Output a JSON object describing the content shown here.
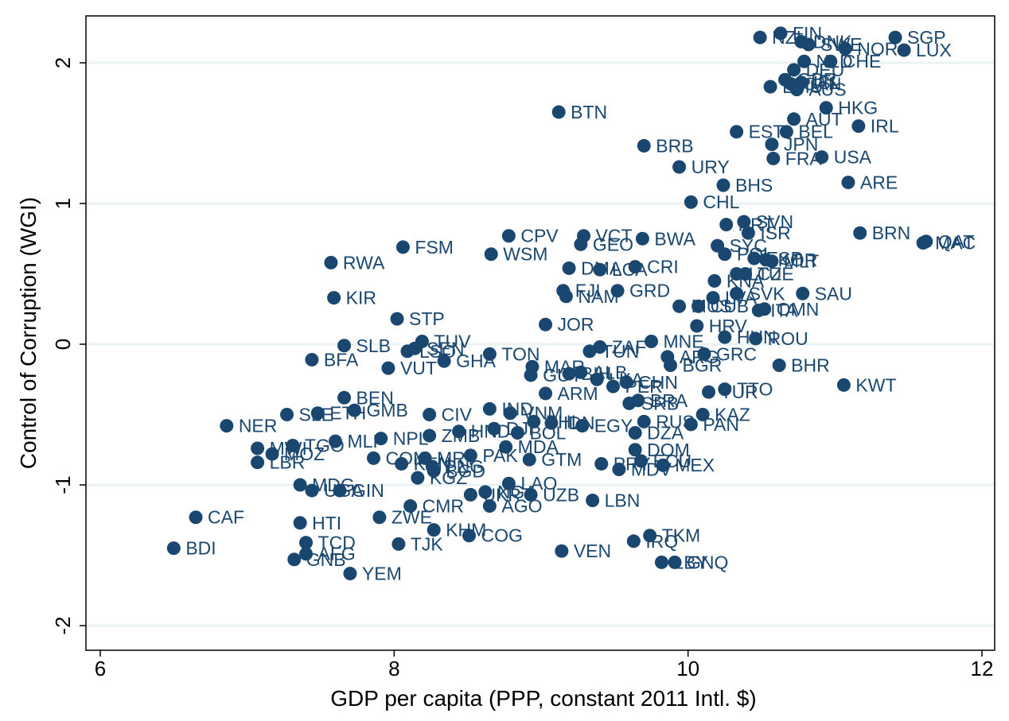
{
  "chart_data": {
    "type": "scatter",
    "xlabel": "GDP per capita (PPP, constant 2011 Intl. $)",
    "ylabel": "Control of Corruption (WGI)",
    "xlim": [
      6,
      12
    ],
    "ylim": [
      -2.3,
      2.3
    ],
    "xticks": [
      6,
      8,
      10,
      12
    ],
    "yticks": [
      -2,
      -1,
      0,
      1,
      2
    ],
    "grid": "horizontal",
    "marker_color": "#1a476f",
    "points": [
      {
        "label": "FIN",
        "x": 10.63,
        "y": 2.21
      },
      {
        "label": "NZL",
        "x": 10.49,
        "y": 2.18
      },
      {
        "label": "DNK",
        "x": 10.77,
        "y": 2.15
      },
      {
        "label": "SWE",
        "x": 10.82,
        "y": 2.13
      },
      {
        "label": "NOR",
        "x": 11.07,
        "y": 2.1
      },
      {
        "label": "CHE",
        "x": 10.97,
        "y": 2.01
      },
      {
        "label": "SGP",
        "x": 11.41,
        "y": 2.18
      },
      {
        "label": "LUX",
        "x": 11.47,
        "y": 2.09
      },
      {
        "label": "NLD",
        "x": 10.79,
        "y": 2.01
      },
      {
        "label": "DEU",
        "x": 10.72,
        "y": 1.95
      },
      {
        "label": "CAN",
        "x": 10.7,
        "y": 1.85
      },
      {
        "label": "GBR",
        "x": 10.66,
        "y": 1.88
      },
      {
        "label": "ISL",
        "x": 10.77,
        "y": 1.86
      },
      {
        "label": "AUS",
        "x": 10.74,
        "y": 1.81
      },
      {
        "label": "BMU",
        "x": 10.56,
        "y": 1.83
      },
      {
        "label": "HKG",
        "x": 10.94,
        "y": 1.68
      },
      {
        "label": "AUT",
        "x": 10.72,
        "y": 1.6
      },
      {
        "label": "IRL",
        "x": 11.16,
        "y": 1.55
      },
      {
        "label": "EST",
        "x": 10.33,
        "y": 1.51
      },
      {
        "label": "BEL",
        "x": 10.67,
        "y": 1.51
      },
      {
        "label": "JPN",
        "x": 10.57,
        "y": 1.42
      },
      {
        "label": "FRA",
        "x": 10.58,
        "y": 1.32
      },
      {
        "label": "USA",
        "x": 10.91,
        "y": 1.33
      },
      {
        "label": "ARE",
        "x": 11.09,
        "y": 1.15
      },
      {
        "label": "BTN",
        "x": 9.12,
        "y": 1.65
      },
      {
        "label": "BRB",
        "x": 9.7,
        "y": 1.41
      },
      {
        "label": "URY",
        "x": 9.94,
        "y": 1.26
      },
      {
        "label": "BHS",
        "x": 10.24,
        "y": 1.13
      },
      {
        "label": "CHL",
        "x": 10.02,
        "y": 1.01
      },
      {
        "label": "SVN",
        "x": 10.38,
        "y": 0.87
      },
      {
        "label": "PRT",
        "x": 10.26,
        "y": 0.85
      },
      {
        "label": "ISR",
        "x": 10.41,
        "y": 0.79
      },
      {
        "label": "BRN",
        "x": 11.17,
        "y": 0.79
      },
      {
        "label": "QAT",
        "x": 11.62,
        "y": 0.73
      },
      {
        "label": "MAC",
        "x": 11.6,
        "y": 0.72
      },
      {
        "label": "CPV",
        "x": 8.78,
        "y": 0.77
      },
      {
        "label": "VCT",
        "x": 9.29,
        "y": 0.77
      },
      {
        "label": "GEO",
        "x": 9.27,
        "y": 0.71
      },
      {
        "label": "BWA",
        "x": 9.69,
        "y": 0.75
      },
      {
        "label": "FSM",
        "x": 8.06,
        "y": 0.69
      },
      {
        "label": "WSM",
        "x": 8.66,
        "y": 0.64
      },
      {
        "label": "RWA",
        "x": 7.57,
        "y": 0.58
      },
      {
        "label": "DMA",
        "x": 9.19,
        "y": 0.54
      },
      {
        "label": "LCA",
        "x": 9.4,
        "y": 0.53
      },
      {
        "label": "CRI",
        "x": 9.64,
        "y": 0.55
      },
      {
        "label": "SYC",
        "x": 10.2,
        "y": 0.7
      },
      {
        "label": "POL",
        "x": 10.25,
        "y": 0.64
      },
      {
        "label": "ESP",
        "x": 10.45,
        "y": 0.61
      },
      {
        "label": "KOR",
        "x": 10.53,
        "y": 0.6
      },
      {
        "label": "MLT",
        "x": 10.57,
        "y": 0.59
      },
      {
        "label": "LTU",
        "x": 10.33,
        "y": 0.5
      },
      {
        "label": "CZE",
        "x": 10.39,
        "y": 0.5
      },
      {
        "label": "KNA",
        "x": 10.18,
        "y": 0.45
      },
      {
        "label": "FJI",
        "x": 9.15,
        "y": 0.38
      },
      {
        "label": "NAM",
        "x": 9.17,
        "y": 0.34
      },
      {
        "label": "GRD",
        "x": 9.52,
        "y": 0.38
      },
      {
        "label": "KIR",
        "x": 7.59,
        "y": 0.33
      },
      {
        "label": "SAU",
        "x": 10.78,
        "y": 0.36
      },
      {
        "label": "LVA",
        "x": 10.17,
        "y": 0.33
      },
      {
        "label": "SVK",
        "x": 10.33,
        "y": 0.36
      },
      {
        "label": "OMN",
        "x": 10.52,
        "y": 0.25
      },
      {
        "label": "ITA",
        "x": 10.48,
        "y": 0.24
      },
      {
        "label": "MUS",
        "x": 9.94,
        "y": 0.27
      },
      {
        "label": "CUB",
        "x": 10.07,
        "y": 0.27
      },
      {
        "label": "HRV",
        "x": 10.06,
        "y": 0.13
      },
      {
        "label": "STP",
        "x": 8.02,
        "y": 0.18
      },
      {
        "label": "JOR",
        "x": 9.03,
        "y": 0.14
      },
      {
        "label": "HUN",
        "x": 10.25,
        "y": 0.05
      },
      {
        "label": "ROU",
        "x": 10.46,
        "y": 0.04
      },
      {
        "label": "SLB",
        "x": 7.66,
        "y": -0.01
      },
      {
        "label": "TUV",
        "x": 8.19,
        "y": 0.02
      },
      {
        "label": "SEN",
        "x": 8.14,
        "y": -0.03
      },
      {
        "label": "LSO",
        "x": 8.09,
        "y": -0.05
      },
      {
        "label": "GHA",
        "x": 8.34,
        "y": -0.12
      },
      {
        "label": "TON",
        "x": 8.65,
        "y": -0.07
      },
      {
        "label": "ZAF",
        "x": 9.4,
        "y": -0.02
      },
      {
        "label": "TUN",
        "x": 9.33,
        "y": -0.05
      },
      {
        "label": "MNE",
        "x": 9.75,
        "y": 0.02
      },
      {
        "label": "ARG",
        "x": 9.86,
        "y": -0.09
      },
      {
        "label": "GRC",
        "x": 10.11,
        "y": -0.07
      },
      {
        "label": "BGR",
        "x": 9.88,
        "y": -0.15
      },
      {
        "label": "BFA",
        "x": 7.44,
        "y": -0.11
      },
      {
        "label": "VUT",
        "x": 7.96,
        "y": -0.17
      },
      {
        "label": "MAR",
        "x": 8.94,
        "y": -0.16
      },
      {
        "label": "GUY",
        "x": 8.93,
        "y": -0.22
      },
      {
        "label": "BIH",
        "x": 9.19,
        "y": -0.21
      },
      {
        "label": "LKA",
        "x": 9.38,
        "y": -0.25
      },
      {
        "label": "ALB",
        "x": 9.27,
        "y": -0.2
      },
      {
        "label": "BHR",
        "x": 10.62,
        "y": -0.15
      },
      {
        "label": "CHN",
        "x": 9.58,
        "y": -0.27
      },
      {
        "label": "PER",
        "x": 9.49,
        "y": -0.3
      },
      {
        "label": "TTO",
        "x": 10.25,
        "y": -0.32
      },
      {
        "label": "TUR",
        "x": 10.14,
        "y": -0.34
      },
      {
        "label": "KWT",
        "x": 11.06,
        "y": -0.29
      },
      {
        "label": "ARM",
        "x": 9.03,
        "y": -0.35
      },
      {
        "label": "BRA",
        "x": 9.66,
        "y": -0.4
      },
      {
        "label": "SRB",
        "x": 9.6,
        "y": -0.42
      },
      {
        "label": "IND",
        "x": 8.65,
        "y": -0.46
      },
      {
        "label": "BEN",
        "x": 7.66,
        "y": -0.38
      },
      {
        "label": "SLE",
        "x": 7.27,
        "y": -0.5
      },
      {
        "label": "ETH",
        "x": 7.48,
        "y": -0.49
      },
      {
        "label": "GMB",
        "x": 7.73,
        "y": -0.47
      },
      {
        "label": "CIV",
        "x": 8.24,
        "y": -0.5
      },
      {
        "label": "VNM",
        "x": 8.79,
        "y": -0.49
      },
      {
        "label": "KAZ",
        "x": 10.1,
        "y": -0.5
      },
      {
        "label": "PAN",
        "x": 10.02,
        "y": -0.57
      },
      {
        "label": "RUS",
        "x": 9.7,
        "y": -0.55
      },
      {
        "label": "PHL",
        "x": 8.95,
        "y": -0.55
      },
      {
        "label": "IDN",
        "x": 9.07,
        "y": -0.56
      },
      {
        "label": "EGY",
        "x": 9.28,
        "y": -0.58
      },
      {
        "label": "DZA",
        "x": 9.64,
        "y": -0.63
      },
      {
        "label": "HND",
        "x": 8.44,
        "y": -0.62
      },
      {
        "label": "DJI",
        "x": 8.68,
        "y": -0.6
      },
      {
        "label": "BOL",
        "x": 8.84,
        "y": -0.63
      },
      {
        "label": "NER",
        "x": 6.86,
        "y": -0.58
      },
      {
        "label": "MWI",
        "x": 7.07,
        "y": -0.74
      },
      {
        "label": "TGO",
        "x": 7.31,
        "y": -0.72
      },
      {
        "label": "MLI",
        "x": 7.6,
        "y": -0.69
      },
      {
        "label": "MOZ",
        "x": 7.17,
        "y": -0.78
      },
      {
        "label": "LBR",
        "x": 7.07,
        "y": -0.84
      },
      {
        "label": "NPL",
        "x": 7.91,
        "y": -0.67
      },
      {
        "label": "ZMB",
        "x": 8.24,
        "y": -0.65
      },
      {
        "label": "COM",
        "x": 7.86,
        "y": -0.81
      },
      {
        "label": "MRT",
        "x": 8.21,
        "y": -0.81
      },
      {
        "label": "PAK",
        "x": 8.52,
        "y": -0.79
      },
      {
        "label": "MDA",
        "x": 8.76,
        "y": -0.73
      },
      {
        "label": "GTM",
        "x": 8.92,
        "y": -0.82
      },
      {
        "label": "KEN",
        "x": 8.05,
        "y": -0.85
      },
      {
        "label": "BGD",
        "x": 8.27,
        "y": -0.9
      },
      {
        "label": "PNG",
        "x": 8.26,
        "y": -0.87
      },
      {
        "label": "DOM",
        "x": 9.64,
        "y": -0.75
      },
      {
        "label": "ECU",
        "x": 9.68,
        "y": -0.83
      },
      {
        "label": "MEX",
        "x": 9.83,
        "y": -0.86
      },
      {
        "label": "PRY",
        "x": 9.41,
        "y": -0.85
      },
      {
        "label": "MDV",
        "x": 9.53,
        "y": -0.89
      },
      {
        "label": "KGZ",
        "x": 8.16,
        "y": -0.95
      },
      {
        "label": "MDG",
        "x": 7.36,
        "y": -1.0
      },
      {
        "label": "UGA",
        "x": 7.44,
        "y": -1.04
      },
      {
        "label": "GIN",
        "x": 7.63,
        "y": -1.04
      },
      {
        "label": "LAO",
        "x": 8.78,
        "y": -0.99
      },
      {
        "label": "NGA",
        "x": 8.62,
        "y": -1.05
      },
      {
        "label": "UKR",
        "x": 8.52,
        "y": -1.07
      },
      {
        "label": "UZB",
        "x": 8.93,
        "y": -1.07
      },
      {
        "label": "LBN",
        "x": 9.35,
        "y": -1.11
      },
      {
        "label": "CMR",
        "x": 8.11,
        "y": -1.15
      },
      {
        "label": "AGO",
        "x": 8.65,
        "y": -1.15
      },
      {
        "label": "CAF",
        "x": 6.65,
        "y": -1.23
      },
      {
        "label": "HTI",
        "x": 7.36,
        "y": -1.27
      },
      {
        "label": "ZWE",
        "x": 7.9,
        "y": -1.23
      },
      {
        "label": "KHM",
        "x": 8.27,
        "y": -1.32
      },
      {
        "label": "COG",
        "x": 8.51,
        "y": -1.36
      },
      {
        "label": "TKM",
        "x": 9.74,
        "y": -1.36
      },
      {
        "label": "IRQ",
        "x": 9.63,
        "y": -1.4
      },
      {
        "label": "BDI",
        "x": 6.5,
        "y": -1.45
      },
      {
        "label": "TCD",
        "x": 7.4,
        "y": -1.41
      },
      {
        "label": "TJK",
        "x": 8.03,
        "y": -1.42
      },
      {
        "label": "AFG",
        "x": 7.4,
        "y": -1.49
      },
      {
        "label": "GNB",
        "x": 7.32,
        "y": -1.53
      },
      {
        "label": "VEN",
        "x": 9.14,
        "y": -1.47
      },
      {
        "label": "LBY",
        "x": 9.82,
        "y": -1.55
      },
      {
        "label": "GNQ",
        "x": 9.91,
        "y": -1.55
      },
      {
        "label": "YEM",
        "x": 7.7,
        "y": -1.63
      }
    ]
  }
}
